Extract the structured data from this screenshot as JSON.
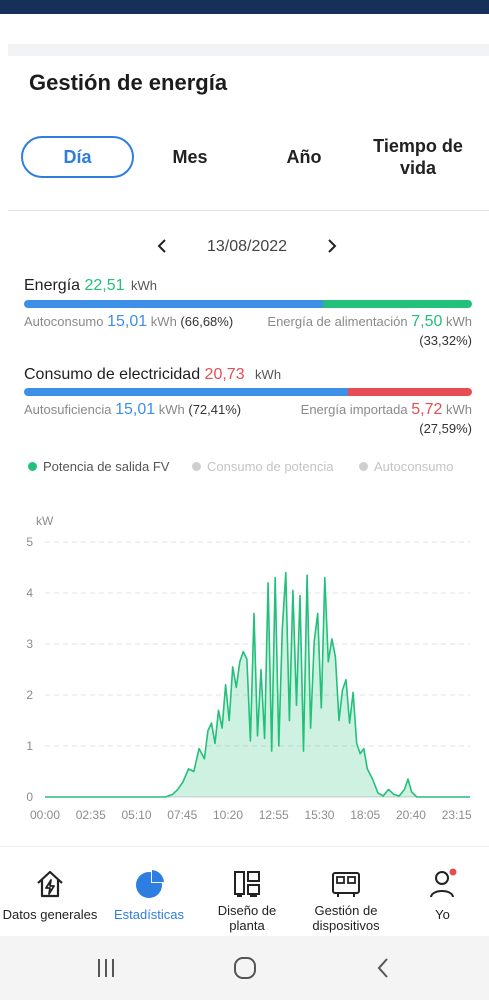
{
  "page_title": "Gestión de energía",
  "tabs": [
    {
      "label": "Día",
      "active": true
    },
    {
      "label": "Mes",
      "active": false
    },
    {
      "label": "Año",
      "active": false
    },
    {
      "label": "Tiempo de vida",
      "active": false
    }
  ],
  "date": "13/08/2022",
  "energy": {
    "label": "Energía",
    "value": "22,51",
    "unit": "kWh",
    "self_use_label": "Autoconsumo",
    "self_use_value": "15,01",
    "self_use_unit": "kWh",
    "self_use_pct": "(66,68%)",
    "feed_label": "Energía de alimentación",
    "feed_value": "7,50",
    "feed_unit": "kWh",
    "feed_pct": "(33,32%)",
    "self_use_fraction": 0.6668
  },
  "consumption": {
    "label": "Consumo de electricidad",
    "value": "20,73",
    "unit": "kWh",
    "self_suff_label": "Autosuficiencia",
    "self_suff_value": "15,01",
    "self_suff_unit": "kWh",
    "self_suff_pct": "(72,41%)",
    "import_label": "Energía importada",
    "import_value": "5,72",
    "import_unit": "kWh",
    "import_pct": "(27,59%)",
    "self_suff_fraction": 0.7241
  },
  "legend": [
    {
      "label": "Potencia de salida FV",
      "active": true
    },
    {
      "label": "Consumo de potencia",
      "active": false
    },
    {
      "label": "Autoconsumo",
      "active": false
    }
  ],
  "chart_data": {
    "type": "area",
    "ylabel": "kW",
    "ylim": [
      0,
      5
    ],
    "yticks": [
      "0",
      "1",
      "2",
      "3",
      "4",
      "5"
    ],
    "xticks": [
      "00:00",
      "02:35",
      "05:10",
      "07:45",
      "10:20",
      "12:55",
      "15:30",
      "18:05",
      "20:40",
      "23:15"
    ],
    "series": [
      {
        "name": "Potencia de salida FV",
        "color": "#22c07a",
        "x": [
          0,
          6.8,
          7.2,
          7.5,
          7.8,
          8.1,
          8.4,
          8.7,
          9.0,
          9.2,
          9.4,
          9.6,
          9.8,
          10.0,
          10.2,
          10.4,
          10.6,
          10.8,
          11.0,
          11.2,
          11.4,
          11.6,
          11.8,
          12.0,
          12.2,
          12.4,
          12.6,
          12.8,
          13.0,
          13.2,
          13.4,
          13.6,
          13.8,
          14.0,
          14.2,
          14.4,
          14.6,
          14.8,
          15.0,
          15.2,
          15.4,
          15.6,
          15.8,
          16.0,
          16.2,
          16.4,
          16.6,
          16.8,
          17.0,
          17.2,
          17.4,
          17.6,
          17.8,
          18.0,
          18.2,
          18.5,
          18.8,
          19.1,
          19.4,
          19.7,
          20.0,
          20.3,
          20.5,
          20.7,
          21.0,
          21.5,
          24.0
        ],
        "y": [
          0,
          0,
          0.05,
          0.15,
          0.3,
          0.55,
          0.5,
          0.95,
          0.75,
          1.3,
          1.45,
          1.05,
          1.7,
          1.35,
          2.2,
          1.5,
          2.55,
          2.15,
          2.65,
          2.85,
          2.7,
          1.1,
          3.6,
          1.2,
          2.5,
          1.15,
          4.2,
          0.9,
          4.3,
          1.0,
          3.3,
          4.4,
          1.5,
          4.05,
          1.8,
          3.95,
          0.9,
          4.35,
          1.35,
          3.05,
          3.6,
          1.75,
          4.3,
          2.65,
          3.1,
          2.75,
          1.5,
          2.1,
          2.3,
          1.45,
          2.05,
          1.05,
          0.85,
          0.95,
          0.55,
          0.35,
          0.08,
          0.02,
          0.15,
          0.05,
          0.02,
          0.15,
          0.35,
          0.1,
          0,
          0,
          0
        ]
      }
    ]
  },
  "nav": [
    {
      "label": "Datos generales",
      "icon": "home-bolt-icon",
      "active": false
    },
    {
      "label": "Estadísticas",
      "icon": "pie-chart-icon",
      "active": true
    },
    {
      "label": "Diseño de\nplanta",
      "icon": "layout-icon",
      "active": false
    },
    {
      "label": "Gestión de\ndispositivos",
      "icon": "device-icon",
      "active": false
    },
    {
      "label": "Yo",
      "icon": "user-icon",
      "active": false
    }
  ]
}
